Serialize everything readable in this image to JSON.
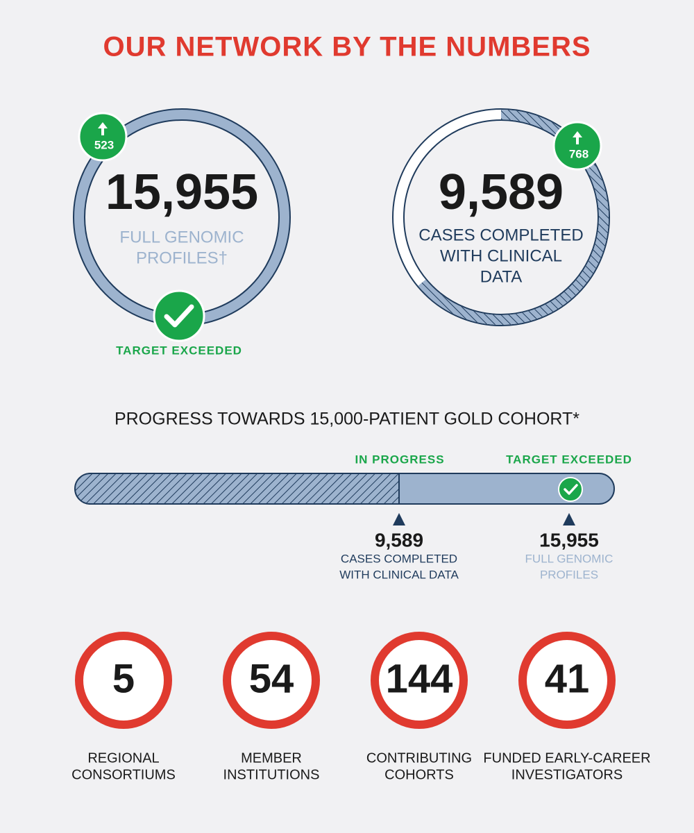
{
  "header": {
    "title": "OUR NETWORK BY THE NUMBERS"
  },
  "rings": [
    {
      "value": "15,955",
      "label_lines": [
        "FULL GENOMIC",
        "PROFILES†"
      ],
      "badge": "523",
      "status": "TARGET EXCEEDED"
    },
    {
      "value": "9,589",
      "label_lines": [
        "CASES COMPLETED",
        "WITH CLINICAL",
        "DATA"
      ],
      "badge": "768"
    }
  ],
  "progress": {
    "title": "PROGRESS TOWARDS 15,000-PATIENT GOLD COHORT*",
    "status_left": "IN PROGRESS",
    "status_right": "TARGET EXCEEDED",
    "markers": [
      {
        "value": "9,589",
        "label_lines": [
          "CASES COMPLETED",
          "WITH CLINICAL DATA"
        ]
      },
      {
        "value": "15,955",
        "label_lines": [
          "FULL GENOMIC",
          "PROFILES"
        ]
      }
    ]
  },
  "stats": [
    {
      "value": "5",
      "label_lines": [
        "REGIONAL",
        "CONSORTIUMS"
      ]
    },
    {
      "value": "54",
      "label_lines": [
        "MEMBER",
        "INSTITUTIONS"
      ]
    },
    {
      "value": "144",
      "label_lines": [
        "CONTRIBUTING",
        "COHORTS"
      ]
    },
    {
      "value": "41",
      "label_lines": [
        "FUNDED EARLY-CAREER",
        "INVESTIGATORS"
      ]
    }
  ]
}
